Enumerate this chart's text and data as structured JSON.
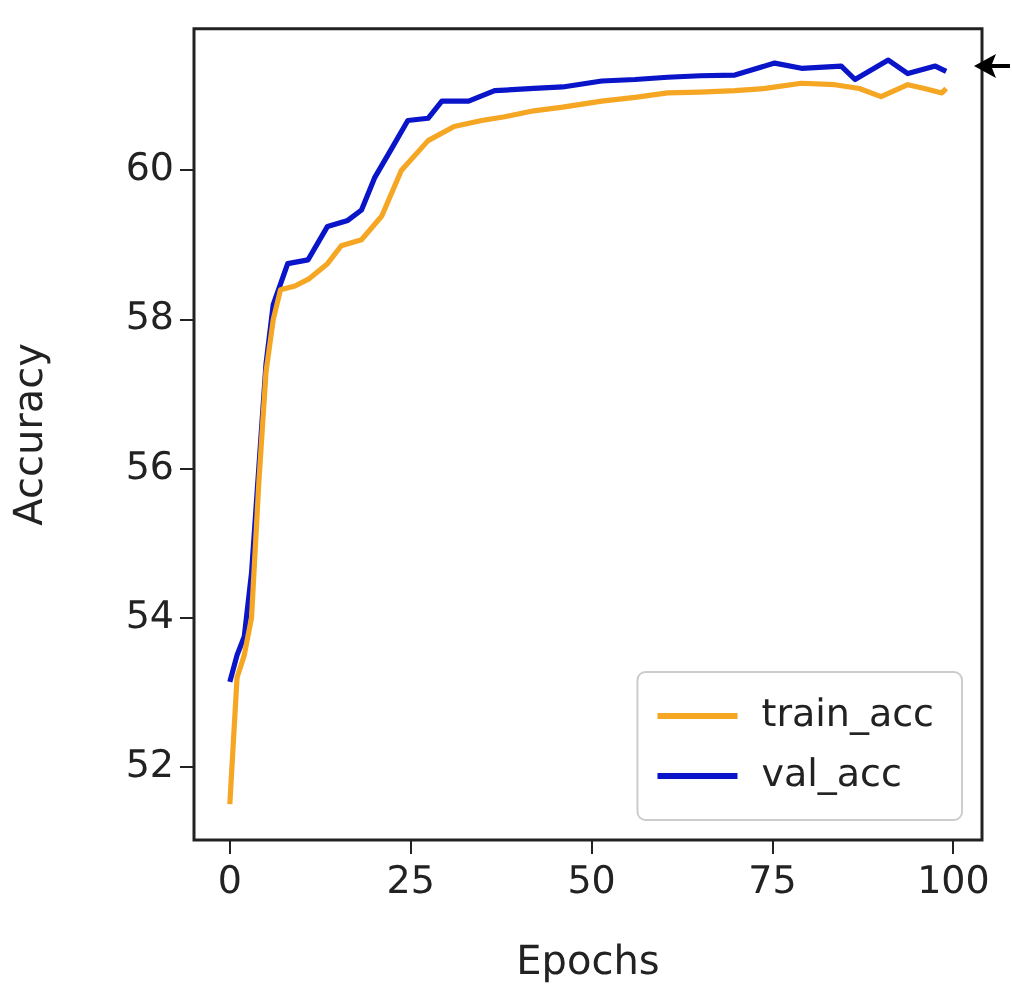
{
  "chart_data": {
    "type": "line",
    "xlabel": "Epochs",
    "ylabel": "Accuracy",
    "xlim": [
      -4.95,
      103.95
    ],
    "ylim": [
      51.02,
      61.9
    ],
    "xticks": [
      0,
      25,
      50,
      75,
      100
    ],
    "yticks": [
      52,
      54,
      56,
      58,
      60
    ],
    "grid": false,
    "legend": "bottom right",
    "marker": "none",
    "line_style": "solid",
    "series": [
      {
        "name": "train_acc",
        "color": "#f5a623",
        "x": [
          0,
          1,
          2,
          3,
          4,
          5,
          6,
          7,
          9,
          11,
          13.5,
          15.4,
          18.2,
          21,
          23.7,
          27.4,
          31,
          34.8,
          38,
          42,
          46,
          51.4,
          56,
          60.5,
          65,
          69.8,
          74,
          79,
          83.6,
          87,
          90,
          93.7,
          96,
          98.4,
          99
        ],
        "values": [
          51.5,
          53.2,
          53.5,
          54.0,
          55.8,
          57.3,
          58.0,
          58.4,
          58.45,
          58.55,
          58.75,
          58.99,
          59.07,
          59.39,
          60.0,
          60.4,
          60.59,
          60.67,
          60.72,
          60.8,
          60.85,
          60.93,
          60.98,
          61.04,
          61.05,
          61.07,
          61.1,
          61.17,
          61.15,
          61.1,
          60.99,
          61.15,
          61.1,
          61.04,
          61.1
        ]
      },
      {
        "name": "val_acc",
        "color": "#0a14c8",
        "x": [
          0,
          1,
          2,
          3,
          4,
          5,
          6,
          8,
          10.8,
          13.5,
          16.3,
          18.2,
          20,
          22.4,
          24.6,
          27.4,
          29.3,
          33,
          36.6,
          42,
          46,
          51.4,
          56,
          60.5,
          65,
          69.8,
          75.3,
          79,
          84.5,
          86.4,
          91,
          93.7,
          97.5,
          99
        ],
        "values": [
          53.14,
          53.5,
          53.75,
          54.6,
          56.0,
          57.4,
          58.2,
          58.75,
          58.8,
          59.25,
          59.33,
          59.47,
          59.9,
          60.3,
          60.67,
          60.7,
          60.93,
          60.93,
          61.07,
          61.1,
          61.12,
          61.2,
          61.22,
          61.25,
          61.27,
          61.28,
          61.44,
          61.37,
          61.4,
          61.22,
          61.48,
          61.3,
          61.4,
          61.33
        ]
      }
    ]
  }
}
